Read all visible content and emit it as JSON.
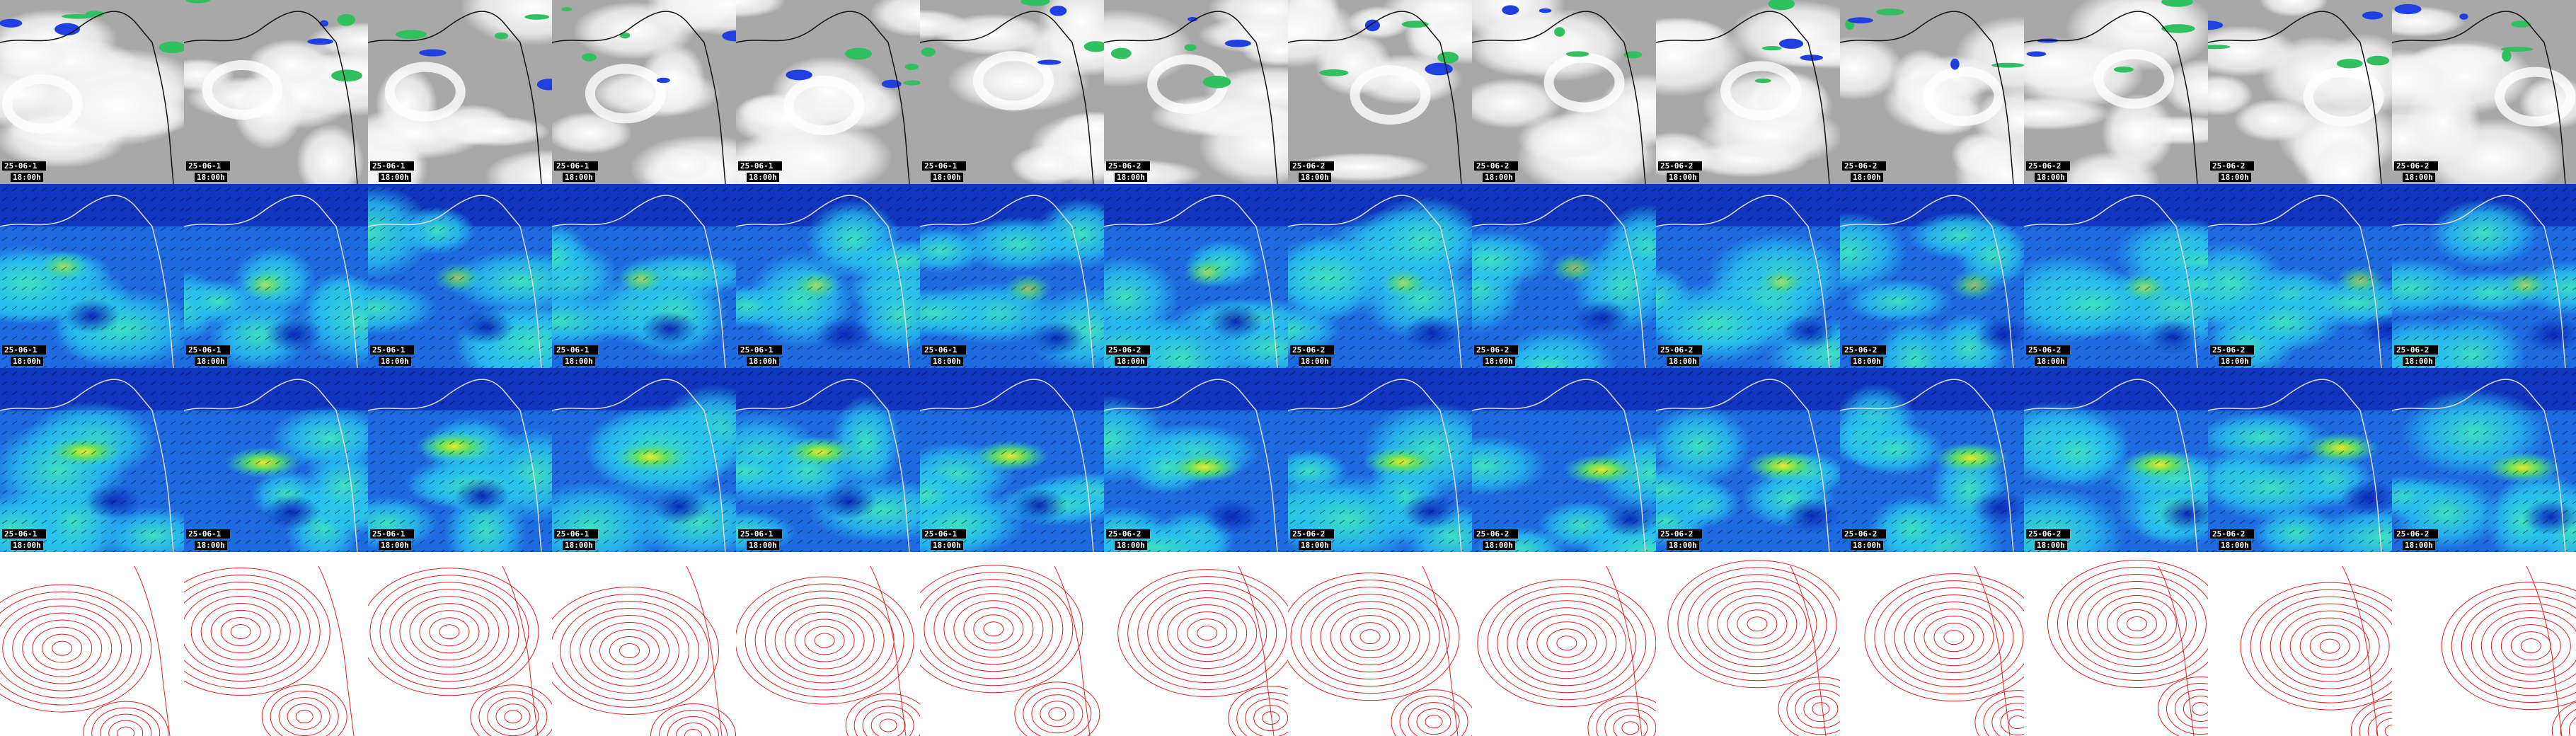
{
  "rows": [
    {
      "labels": [
        {
          "date": "25-06-1",
          "time": "18:00h"
        },
        {
          "date": "25-06-1",
          "time": "18:00h"
        },
        {
          "date": "25-06-1",
          "time": "18:00h"
        },
        {
          "date": "25-06-1",
          "time": "18:00h"
        },
        {
          "date": "25-06-1",
          "time": "18:00h"
        },
        {
          "date": "25-06-1",
          "time": "18:00h"
        },
        {
          "date": "25-06-2",
          "time": "18:00h"
        },
        {
          "date": "25-06-2",
          "time": "18:00h"
        },
        {
          "date": "25-06-2",
          "time": "18:00h"
        },
        {
          "date": "25-06-2",
          "time": "18:00h"
        },
        {
          "date": "25-06-2",
          "time": "18:00h"
        },
        {
          "date": "25-06-2",
          "time": "18:00h"
        },
        {
          "date": "25-06-2",
          "time": "18:00h"
        },
        {
          "date": "25-06-2",
          "time": "18:00h"
        }
      ]
    },
    {
      "labels": [
        {
          "date": "25-06-1",
          "time": "18:00h"
        },
        {
          "date": "25-06-1",
          "time": "18:00h"
        },
        {
          "date": "25-06-1",
          "time": "18:00h"
        },
        {
          "date": "25-06-1",
          "time": "18:00h"
        },
        {
          "date": "25-06-1",
          "time": "18:00h"
        },
        {
          "date": "25-06-1",
          "time": "18:00h"
        },
        {
          "date": "25-06-2",
          "time": "18:00h"
        },
        {
          "date": "25-06-2",
          "time": "18:00h"
        },
        {
          "date": "25-06-2",
          "time": "18:00h"
        },
        {
          "date": "25-06-2",
          "time": "18:00h"
        },
        {
          "date": "25-06-2",
          "time": "18:00h"
        },
        {
          "date": "25-06-2",
          "time": "18:00h"
        },
        {
          "date": "25-06-2",
          "time": "18:00h"
        },
        {
          "date": "25-06-2",
          "time": "18:00h"
        }
      ]
    },
    {
      "labels": [
        {
          "date": "25-06-1",
          "time": "18:00h"
        },
        {
          "date": "25-06-1",
          "time": "18:00h"
        },
        {
          "date": "25-06-1",
          "time": "18:00h"
        },
        {
          "date": "25-06-1",
          "time": "18:00h"
        },
        {
          "date": "25-06-1",
          "time": "18:00h"
        },
        {
          "date": "25-06-1",
          "time": "18:00h"
        },
        {
          "date": "25-06-2",
          "time": "18:00h"
        },
        {
          "date": "25-06-2",
          "time": "18:00h"
        },
        {
          "date": "25-06-2",
          "time": "18:00h"
        },
        {
          "date": "25-06-2",
          "time": "18:00h"
        },
        {
          "date": "25-06-2",
          "time": "18:00h"
        },
        {
          "date": "25-06-2",
          "time": "18:00h"
        },
        {
          "date": "25-06-2",
          "time": "18:00h"
        },
        {
          "date": "25-06-2",
          "time": "18:00h"
        }
      ]
    }
  ]
}
